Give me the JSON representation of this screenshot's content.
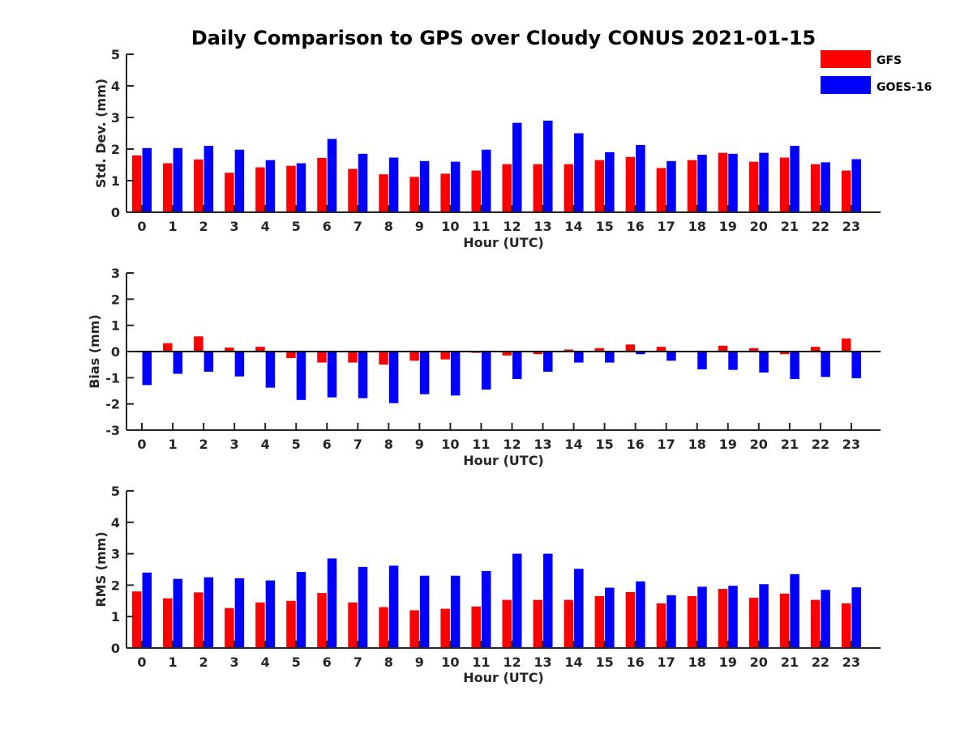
{
  "title": "Daily Comparison to GPS over Cloudy CONUS 2021-01-15",
  "legend": [
    {
      "name": "GFS",
      "color": "#ff0000"
    },
    {
      "name": "GOES-16",
      "color": "#0000ff"
    }
  ],
  "chart_data": [
    {
      "type": "bar",
      "title": "Daily Comparison to GPS over Cloudy CONUS 2021-01-15",
      "xlabel": "Hour (UTC)",
      "ylabel": "Std. Dev. (mm)",
      "ylim": [
        0,
        5
      ],
      "yticks": [
        "0",
        "1",
        "2",
        "3",
        "4",
        "5"
      ],
      "categories": [
        "0",
        "1",
        "2",
        "3",
        "4",
        "5",
        "6",
        "7",
        "8",
        "9",
        "10",
        "11",
        "12",
        "13",
        "14",
        "15",
        "16",
        "17",
        "18",
        "19",
        "20",
        "21",
        "22",
        "23"
      ],
      "series": [
        {
          "name": "GFS",
          "color": "#ff0000",
          "values": [
            1.8,
            1.55,
            1.67,
            1.25,
            1.42,
            1.47,
            1.72,
            1.37,
            1.2,
            1.12,
            1.22,
            1.32,
            1.52,
            1.52,
            1.52,
            1.65,
            1.75,
            1.4,
            1.65,
            1.88,
            1.6,
            1.73,
            1.52,
            1.32
          ]
        },
        {
          "name": "GOES-16",
          "color": "#0000ff",
          "values": [
            2.03,
            2.03,
            2.1,
            1.98,
            1.65,
            1.55,
            2.32,
            1.85,
            1.73,
            1.62,
            1.6,
            1.98,
            2.83,
            2.9,
            2.5,
            1.9,
            2.13,
            1.62,
            1.82,
            1.85,
            1.88,
            2.1,
            1.58,
            1.68
          ]
        }
      ]
    },
    {
      "type": "bar",
      "xlabel": "Hour (UTC)",
      "ylabel": "Bias (mm)",
      "ylim": [
        -3,
        3
      ],
      "yticks": [
        "-3",
        "-2",
        "-1",
        "0",
        "1",
        "2",
        "3"
      ],
      "categories": [
        "0",
        "1",
        "2",
        "3",
        "4",
        "5",
        "6",
        "7",
        "8",
        "9",
        "10",
        "11",
        "12",
        "13",
        "14",
        "15",
        "16",
        "17",
        "18",
        "19",
        "20",
        "21",
        "22",
        "23"
      ],
      "series": [
        {
          "name": "GFS",
          "color": "#ff0000",
          "values": [
            0.0,
            0.32,
            0.58,
            0.15,
            0.18,
            -0.25,
            -0.42,
            -0.42,
            -0.5,
            -0.35,
            -0.3,
            -0.05,
            -0.15,
            -0.1,
            0.08,
            0.13,
            0.27,
            0.18,
            0.02,
            0.22,
            0.13,
            -0.1,
            0.18,
            0.5
          ]
        },
        {
          "name": "GOES-16",
          "color": "#0000ff",
          "values": [
            -1.28,
            -0.85,
            -0.77,
            -0.95,
            -1.38,
            -1.85,
            -1.75,
            -1.78,
            -1.97,
            -1.63,
            -1.68,
            -1.45,
            -1.05,
            -0.77,
            -0.42,
            -0.42,
            -0.1,
            -0.35,
            -0.68,
            -0.7,
            -0.8,
            -1.05,
            -0.97,
            -1.02
          ]
        }
      ]
    },
    {
      "type": "bar",
      "xlabel": "Hour (UTC)",
      "ylabel": "RMS (mm)",
      "ylim": [
        0,
        5
      ],
      "yticks": [
        "0",
        "1",
        "2",
        "3",
        "4",
        "5"
      ],
      "categories": [
        "0",
        "1",
        "2",
        "3",
        "4",
        "5",
        "6",
        "7",
        "8",
        "9",
        "10",
        "11",
        "12",
        "13",
        "14",
        "15",
        "16",
        "17",
        "18",
        "19",
        "20",
        "21",
        "22",
        "23"
      ],
      "series": [
        {
          "name": "GFS",
          "color": "#ff0000",
          "values": [
            1.8,
            1.58,
            1.77,
            1.27,
            1.45,
            1.5,
            1.75,
            1.45,
            1.3,
            1.2,
            1.25,
            1.32,
            1.53,
            1.53,
            1.53,
            1.65,
            1.78,
            1.42,
            1.65,
            1.88,
            1.6,
            1.73,
            1.53,
            1.42
          ]
        },
        {
          "name": "GOES-16",
          "color": "#0000ff",
          "values": [
            2.4,
            2.2,
            2.25,
            2.22,
            2.15,
            2.42,
            2.85,
            2.58,
            2.62,
            2.3,
            2.3,
            2.45,
            3.0,
            3.0,
            2.52,
            1.92,
            2.12,
            1.68,
            1.95,
            1.98,
            2.03,
            2.35,
            1.85,
            1.93
          ]
        }
      ]
    }
  ]
}
